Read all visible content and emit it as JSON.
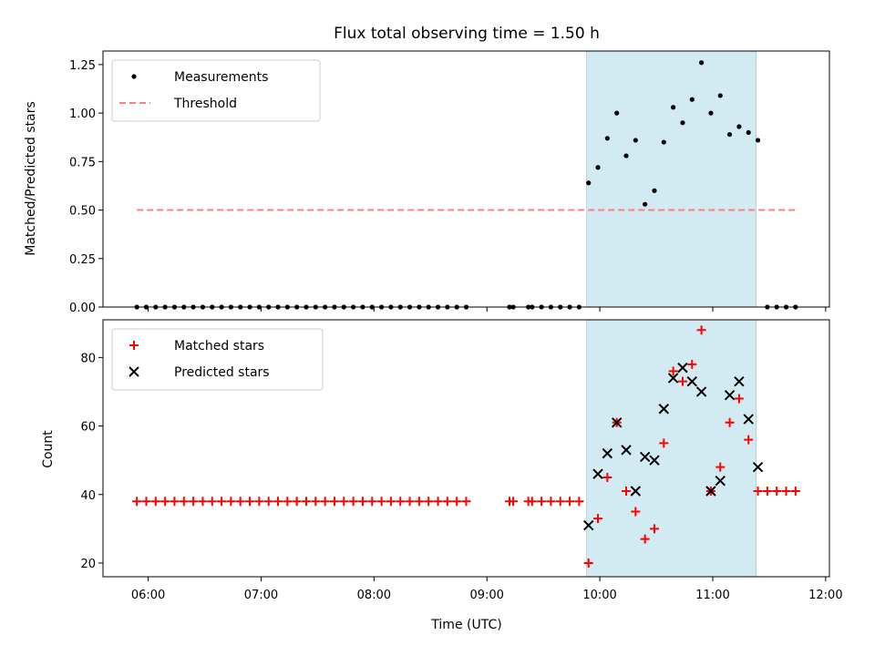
{
  "title": "Flux total observing time = 1.50 h",
  "xlabel": "Time (UTC)",
  "colors": {
    "threshold": "#ff7f7f",
    "matched": "#ff0000",
    "predicted": "#000000",
    "window": "#add8e6"
  },
  "chart_data": [
    {
      "type": "scatter",
      "ylabel": "Matched/Predicted stars",
      "xlim": [
        "05:36",
        "12:02"
      ],
      "ylim": [
        0,
        1.32
      ],
      "yticks": [
        0.0,
        0.25,
        0.5,
        0.75,
        1.0,
        1.25
      ],
      "ytick_labels": [
        "0.00",
        "0.25",
        "0.50",
        "0.75",
        "1.00",
        "1.25"
      ],
      "legend": "top-left",
      "shaded_window": [
        "09:53",
        "11:23"
      ],
      "series": [
        {
          "name": "Measurements",
          "kind": "scatter",
          "x": [
            "05:54",
            "05:59",
            "06:04",
            "06:09",
            "06:14",
            "06:19",
            "06:24",
            "06:29",
            "06:34",
            "06:39",
            "06:44",
            "06:49",
            "06:54",
            "06:59",
            "07:04",
            "07:09",
            "07:14",
            "07:19",
            "07:24",
            "07:29",
            "07:34",
            "07:39",
            "07:44",
            "07:49",
            "07:54",
            "07:59",
            "08:04",
            "08:09",
            "08:14",
            "08:19",
            "08:24",
            "08:29",
            "08:34",
            "08:39",
            "08:44",
            "08:49",
            "09:12",
            "09:14",
            "09:22",
            "09:24",
            "09:29",
            "09:34",
            "09:39",
            "09:44",
            "09:49",
            "09:54",
            "09:59",
            "10:04",
            "10:09",
            "10:14",
            "10:19",
            "10:24",
            "10:29",
            "10:34",
            "10:39",
            "10:44",
            "10:49",
            "10:54",
            "10:59",
            "11:04",
            "11:09",
            "11:14",
            "11:19",
            "11:24",
            "11:29",
            "11:34",
            "11:39",
            "11:44"
          ],
          "y": [
            0,
            0,
            0,
            0,
            0,
            0,
            0,
            0,
            0,
            0,
            0,
            0,
            0,
            0,
            0,
            0,
            0,
            0,
            0,
            0,
            0,
            0,
            0,
            0,
            0,
            0,
            0,
            0,
            0,
            0,
            0,
            0,
            0,
            0,
            0,
            0,
            0,
            0,
            0,
            0,
            0,
            0,
            0,
            0,
            0,
            0.64,
            0.72,
            0.87,
            1.0,
            0.78,
            0.86,
            0.53,
            0.6,
            0.85,
            1.03,
            0.95,
            1.07,
            1.26,
            1.0,
            1.09,
            0.89,
            0.93,
            0.9,
            0.86,
            0,
            0,
            0,
            0
          ]
        },
        {
          "name": "Threshold",
          "kind": "line",
          "x": [
            "05:54",
            "11:44"
          ],
          "y": [
            0.5,
            0.5
          ]
        }
      ]
    },
    {
      "type": "scatter",
      "ylabel": "Count",
      "xlim": [
        "05:36",
        "12:02"
      ],
      "ylim": [
        16,
        91
      ],
      "yticks": [
        20,
        40,
        60,
        80
      ],
      "ytick_labels": [
        "20",
        "40",
        "60",
        "80"
      ],
      "xticks": [
        "06:00",
        "07:00",
        "08:00",
        "09:00",
        "10:00",
        "11:00",
        "12:00"
      ],
      "xtick_labels": [
        "06:00",
        "07:00",
        "08:00",
        "09:00",
        "10:00",
        "11:00",
        "12:00"
      ],
      "legend": "top-left",
      "shaded_window": [
        "09:53",
        "11:23"
      ],
      "series": [
        {
          "name": "Matched stars",
          "marker": "plus",
          "x": [
            "05:54",
            "05:59",
            "06:04",
            "06:09",
            "06:14",
            "06:19",
            "06:24",
            "06:29",
            "06:34",
            "06:39",
            "06:44",
            "06:49",
            "06:54",
            "06:59",
            "07:04",
            "07:09",
            "07:14",
            "07:19",
            "07:24",
            "07:29",
            "07:34",
            "07:39",
            "07:44",
            "07:49",
            "07:54",
            "07:59",
            "08:04",
            "08:09",
            "08:14",
            "08:19",
            "08:24",
            "08:29",
            "08:34",
            "08:39",
            "08:44",
            "08:49",
            "09:12",
            "09:14",
            "09:22",
            "09:24",
            "09:29",
            "09:34",
            "09:39",
            "09:44",
            "09:49",
            "09:54",
            "09:59",
            "10:04",
            "10:09",
            "10:14",
            "10:19",
            "10:24",
            "10:29",
            "10:34",
            "10:39",
            "10:44",
            "10:49",
            "10:54",
            "10:59",
            "11:04",
            "11:09",
            "11:14",
            "11:19",
            "11:24",
            "11:29",
            "11:34",
            "11:39",
            "11:44"
          ],
          "y": [
            38,
            38,
            38,
            38,
            38,
            38,
            38,
            38,
            38,
            38,
            38,
            38,
            38,
            38,
            38,
            38,
            38,
            38,
            38,
            38,
            38,
            38,
            38,
            38,
            38,
            38,
            38,
            38,
            38,
            38,
            38,
            38,
            38,
            38,
            38,
            38,
            38,
            38,
            38,
            38,
            38,
            38,
            38,
            38,
            38,
            20,
            33,
            45,
            61,
            41,
            35,
            27,
            30,
            55,
            76,
            73,
            78,
            88,
            41,
            48,
            61,
            68,
            56,
            41,
            41,
            41,
            41,
            41
          ]
        },
        {
          "name": "Predicted stars",
          "marker": "x",
          "x": [
            "09:54",
            "09:59",
            "10:04",
            "10:09",
            "10:14",
            "10:19",
            "10:24",
            "10:29",
            "10:34",
            "10:39",
            "10:44",
            "10:49",
            "10:54",
            "10:59",
            "11:04",
            "11:09",
            "11:14",
            "11:19",
            "11:24"
          ],
          "y": [
            31,
            46,
            52,
            61,
            53,
            41,
            51,
            50,
            65,
            74,
            77,
            73,
            70,
            41,
            44,
            69,
            73,
            62,
            48
          ]
        }
      ]
    }
  ]
}
